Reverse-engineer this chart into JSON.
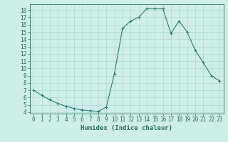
{
  "title": "",
  "xlabel": "Humidex (Indice chaleur)",
  "ylabel": "",
  "x": [
    0,
    1,
    2,
    3,
    4,
    5,
    6,
    7,
    8,
    9,
    10,
    11,
    12,
    13,
    14,
    15,
    16,
    17,
    18,
    19,
    20,
    21,
    22,
    23
  ],
  "y": [
    7.0,
    6.3,
    5.7,
    5.2,
    4.8,
    4.5,
    4.3,
    4.2,
    4.1,
    4.7,
    9.3,
    15.5,
    16.5,
    17.0,
    18.2,
    18.2,
    18.2,
    14.8,
    16.5,
    15.0,
    12.5,
    10.8,
    9.0,
    8.3
  ],
  "line_color": "#2e7d6e",
  "marker": "+",
  "marker_size": 3,
  "marker_lw": 0.8,
  "bg_color": "#ceeee8",
  "grid_color": "#aad4cc",
  "xlim": [
    -0.5,
    23.5
  ],
  "ylim": [
    3.8,
    18.8
  ],
  "yticks": [
    4,
    5,
    6,
    7,
    8,
    9,
    10,
    11,
    12,
    13,
    14,
    15,
    16,
    17,
    18
  ],
  "xticks": [
    0,
    1,
    2,
    3,
    4,
    5,
    6,
    7,
    8,
    9,
    10,
    11,
    12,
    13,
    14,
    15,
    16,
    17,
    18,
    19,
    20,
    21,
    22,
    23
  ],
  "tick_label_color": "#2e6e60",
  "tick_label_size": 5.5,
  "xlabel_size": 6.5,
  "spine_color": "#2e6e60",
  "line_width": 0.8
}
